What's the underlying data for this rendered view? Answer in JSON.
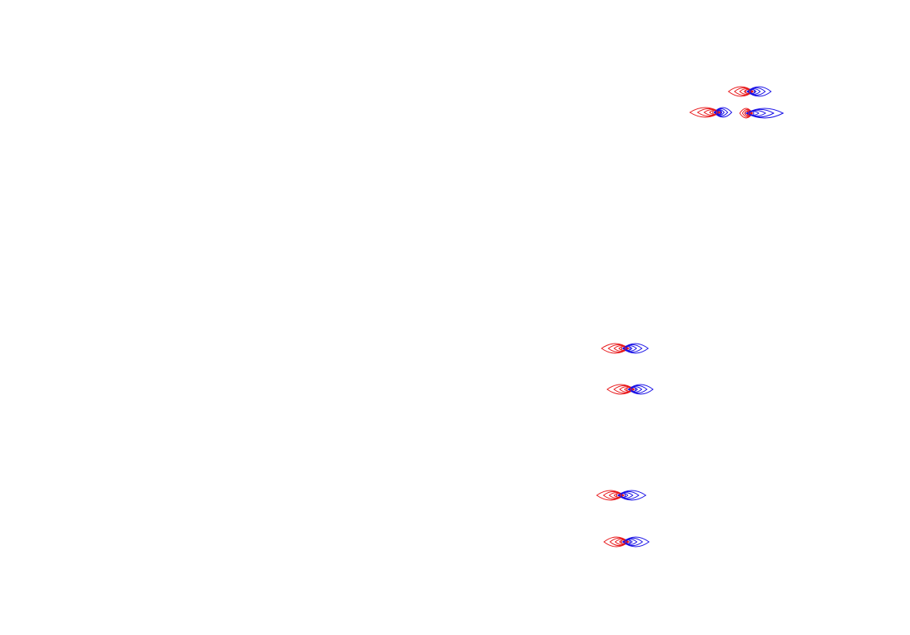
{
  "colors": {
    "background": "#ffffff",
    "red": "#e8191b",
    "blue": "#1a12e6"
  },
  "glyph_icon": "paired red/blue lens contours"
}
